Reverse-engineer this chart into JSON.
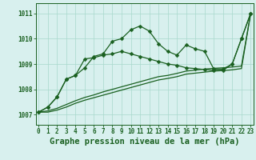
{
  "title": "Graphe pression niveau de la mer (hPa)",
  "xlim": [
    -0.3,
    23.3
  ],
  "ylim": [
    1006.6,
    1011.4
  ],
  "yticks": [
    1007,
    1008,
    1009,
    1010,
    1011
  ],
  "xticks": [
    0,
    1,
    2,
    3,
    4,
    5,
    6,
    7,
    8,
    9,
    10,
    11,
    12,
    13,
    14,
    15,
    16,
    17,
    18,
    19,
    20,
    21,
    22,
    23
  ],
  "background_color": "#d8f0ee",
  "grid_color": "#a8d8cc",
  "line_color": "#1a6020",
  "series_main": [
    1007.1,
    1007.3,
    1007.7,
    1008.4,
    1008.55,
    1008.85,
    1009.3,
    1009.4,
    1009.9,
    1010.0,
    1010.35,
    1010.5,
    1010.3,
    1009.8,
    1009.5,
    1009.35,
    1009.75,
    1009.6,
    1009.5,
    1008.8,
    1008.8,
    1009.0,
    1010.0,
    1011.0
  ],
  "series_smooth": [
    1007.1,
    1007.3,
    1007.7,
    1008.4,
    1008.55,
    1009.2,
    1009.25,
    1009.35,
    1009.4,
    1009.5,
    1009.4,
    1009.3,
    1009.2,
    1009.1,
    1009.0,
    1008.95,
    1008.85,
    1008.82,
    1008.78,
    1008.75,
    1008.75,
    1009.0,
    1010.0,
    1011.0
  ],
  "series_linear1": [
    1007.1,
    1007.15,
    1007.25,
    1007.4,
    1007.55,
    1007.68,
    1007.78,
    1007.9,
    1008.0,
    1008.1,
    1008.2,
    1008.3,
    1008.4,
    1008.5,
    1008.55,
    1008.63,
    1008.72,
    1008.76,
    1008.8,
    1008.83,
    1008.85,
    1008.88,
    1008.92,
    1011.0
  ],
  "series_linear2": [
    1007.1,
    1007.1,
    1007.18,
    1007.3,
    1007.45,
    1007.57,
    1007.67,
    1007.77,
    1007.87,
    1007.97,
    1008.07,
    1008.17,
    1008.27,
    1008.37,
    1008.43,
    1008.5,
    1008.6,
    1008.64,
    1008.68,
    1008.72,
    1008.74,
    1008.77,
    1008.82,
    1011.0
  ],
  "tick_fontsize": 5.5,
  "title_fontsize": 7.5,
  "marker_size": 2.5,
  "line_width": 0.9
}
